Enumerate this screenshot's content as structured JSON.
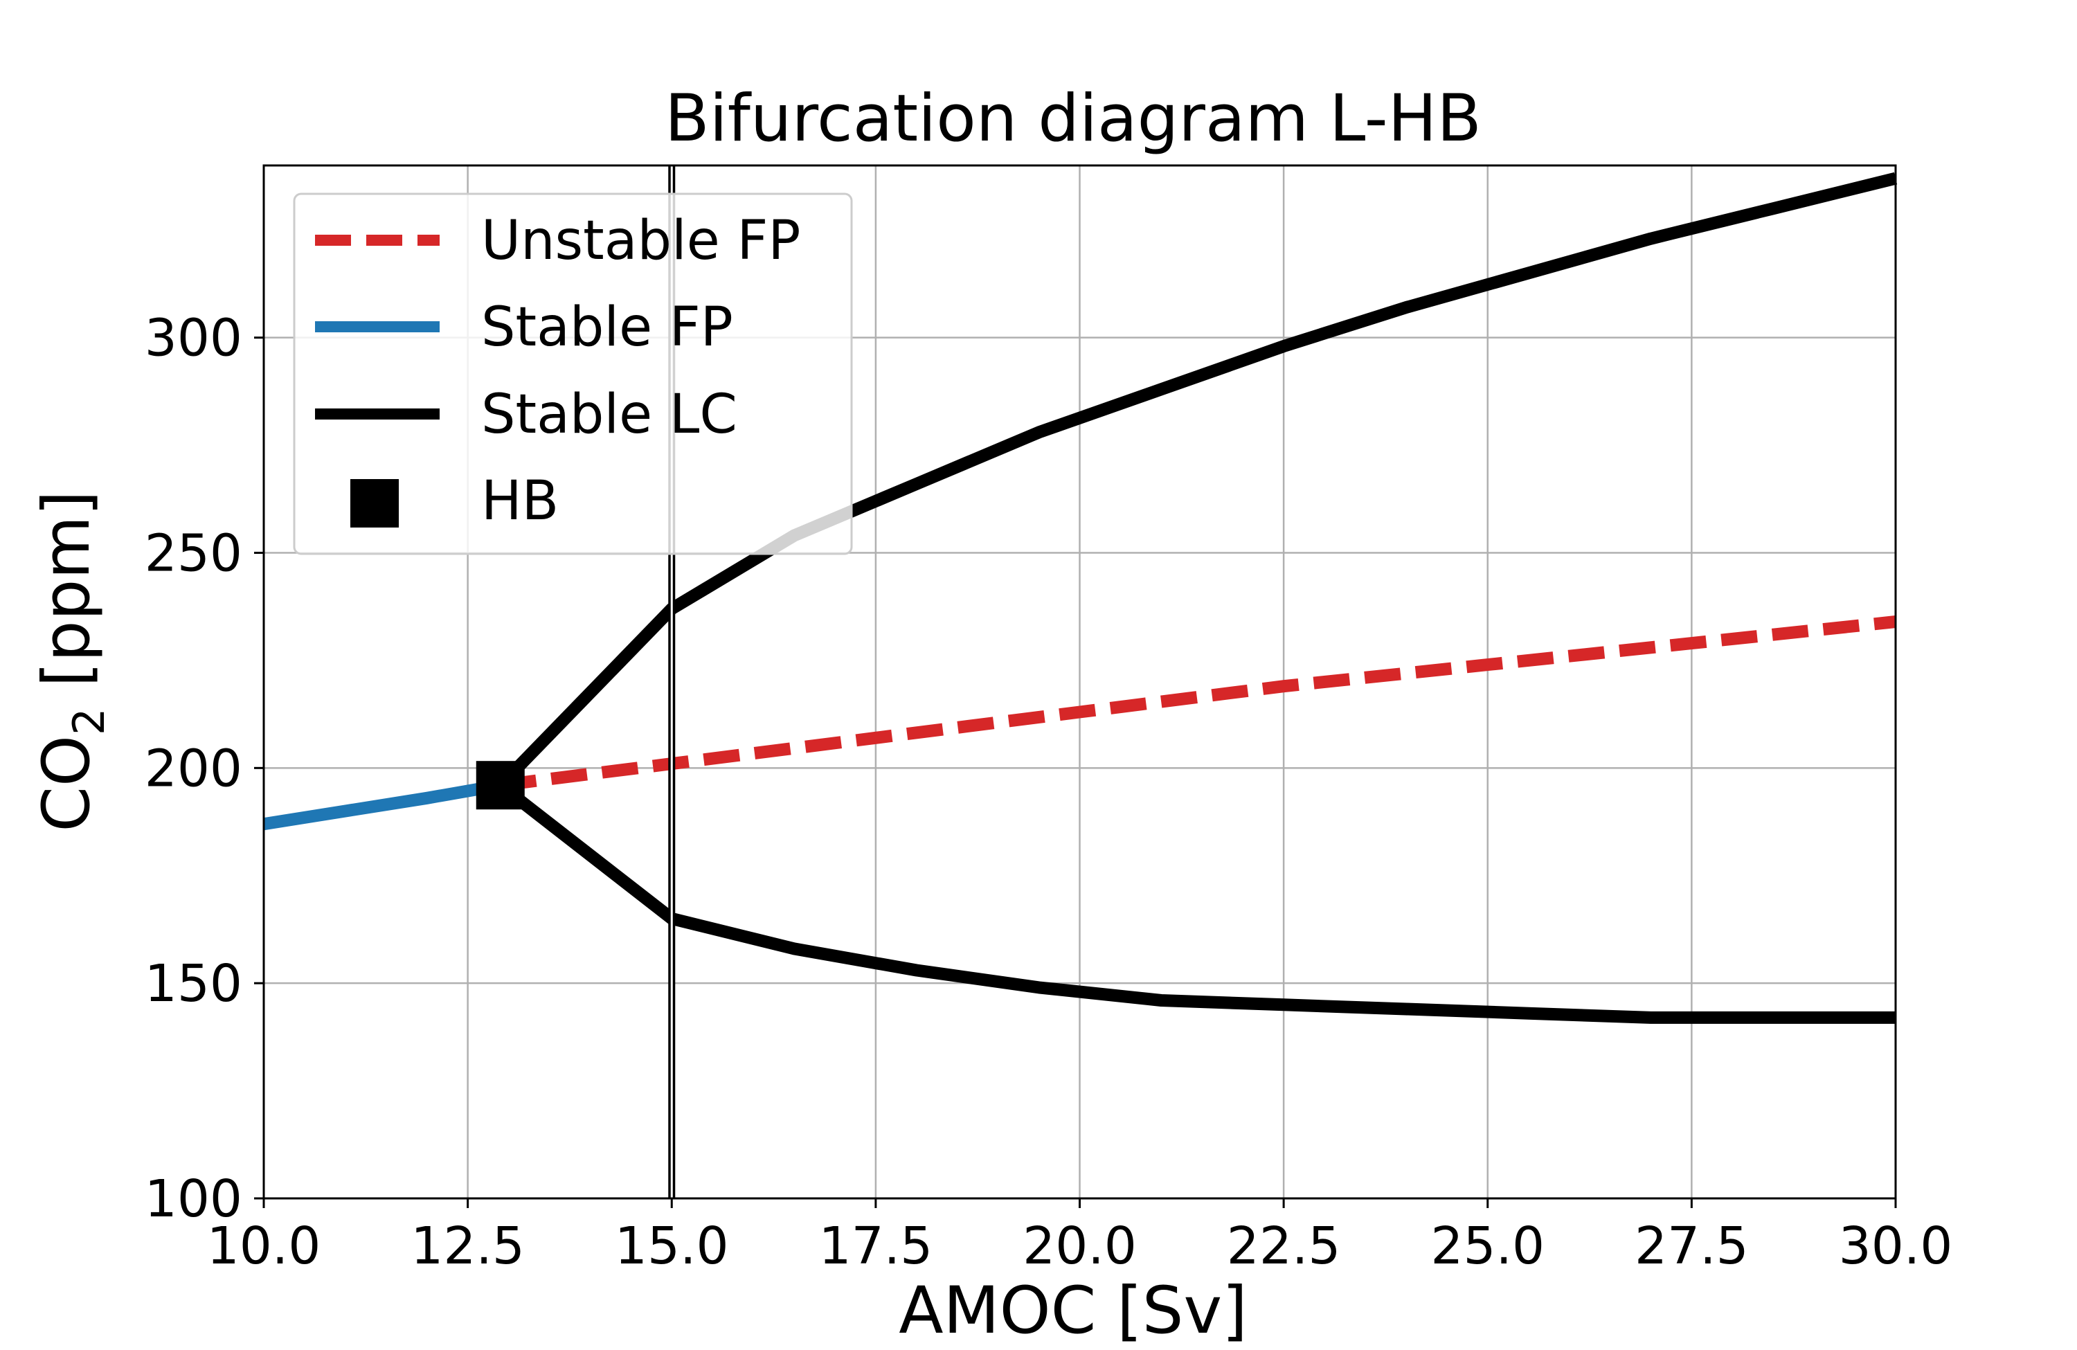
{
  "chart_data": {
    "type": "line",
    "title": "Bifurcation diagram L-HB",
    "xlabel": "AMOC [Sv]",
    "ylabel": {
      "prefix": "CO",
      "subscript": "2",
      "suffix": " [ppm]"
    },
    "xlim": [
      10.0,
      30.0
    ],
    "ylim": [
      100,
      340
    ],
    "xticks": [
      "10.0",
      "12.5",
      "15.0",
      "17.5",
      "20.0",
      "22.5",
      "25.0",
      "27.5",
      "30.0"
    ],
    "yticks": [
      "100",
      "150",
      "200",
      "250",
      "300"
    ],
    "grid": true,
    "legend_placement": "upper-left",
    "vertical_line_x": 15.0,
    "colors": {
      "unstable_fp": "#d62728",
      "stable_fp": "#1f77b4",
      "stable_lc": "#000000",
      "hb": "#000000",
      "grid": "#b0b0b0"
    },
    "series": [
      {
        "name": "Unstable FP",
        "key": "unstable_fp",
        "style": "dashed",
        "x": [
          12.9,
          15.0,
          17.5,
          20.0,
          22.5,
          25.0,
          27.5,
          30.0
        ],
        "y": [
          196,
          201,
          207,
          213,
          219,
          224,
          229,
          234
        ]
      },
      {
        "name": "Stable FP",
        "key": "stable_fp",
        "style": "solid",
        "x": [
          10.0,
          11.0,
          12.0,
          12.9
        ],
        "y": [
          187,
          190,
          193,
          196
        ]
      },
      {
        "name": "Stable LC",
        "key": "stable_lc_upper",
        "style": "solid",
        "x": [
          12.9,
          15.0,
          16.5,
          18.0,
          19.5,
          21.0,
          22.5,
          24.0,
          25.5,
          27.0,
          28.5,
          30.0
        ],
        "y": [
          196,
          237,
          254,
          266,
          278,
          288,
          298,
          307,
          315,
          323,
          330,
          337
        ]
      },
      {
        "key": "stable_lc_lower",
        "style": "solid",
        "x": [
          12.9,
          15.0,
          16.5,
          18.0,
          19.5,
          21.0,
          22.5,
          24.0,
          25.5,
          27.0,
          28.5,
          30.0
        ],
        "y": [
          196,
          165,
          158,
          153,
          149,
          146,
          145,
          144,
          143,
          142,
          142,
          142
        ]
      }
    ],
    "hb_point": {
      "name": "HB",
      "x": 12.9,
      "y": 196
    }
  }
}
